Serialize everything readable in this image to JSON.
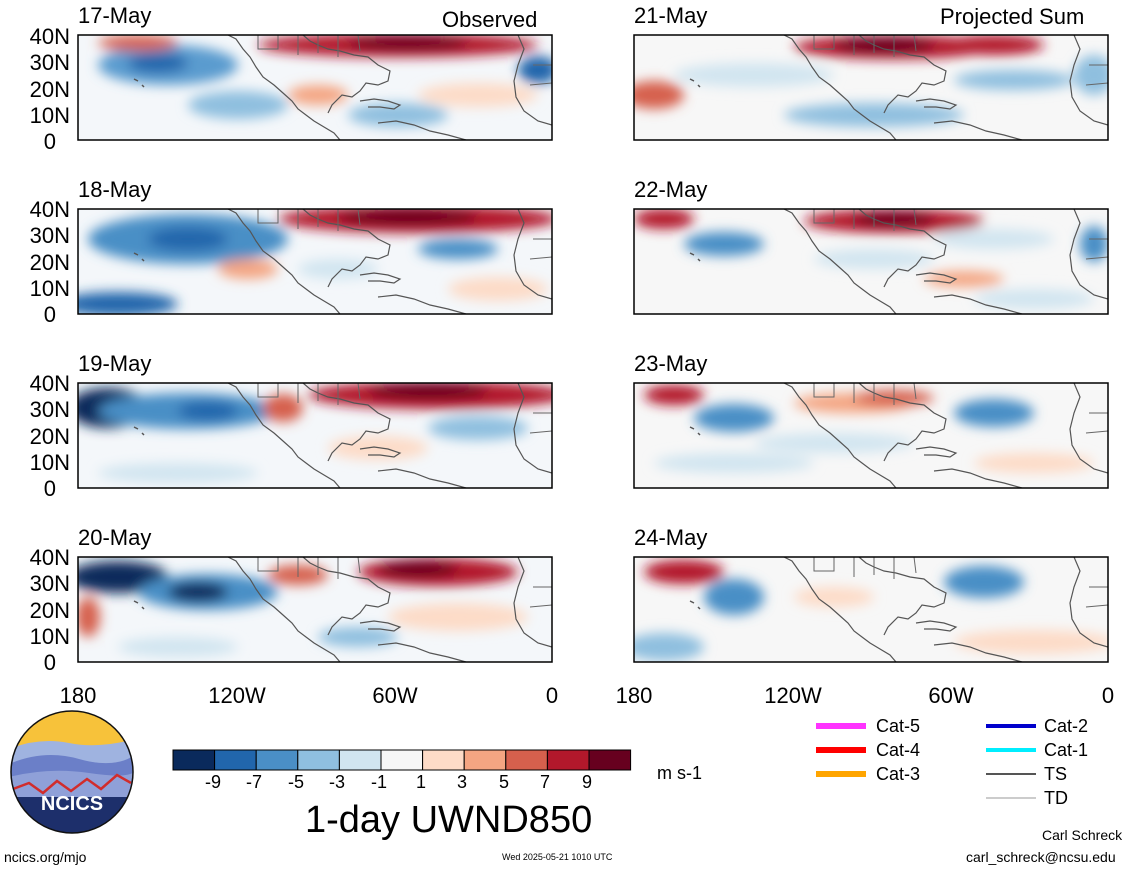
{
  "left_header": "Observed",
  "right_header": "Projected Sum",
  "left_panels": [
    {
      "date": "17-May"
    },
    {
      "date": "18-May"
    },
    {
      "date": "19-May"
    },
    {
      "date": "20-May"
    }
  ],
  "right_panels": [
    {
      "date": "21-May"
    },
    {
      "date": "22-May"
    },
    {
      "date": "23-May"
    },
    {
      "date": "24-May"
    }
  ],
  "y_ticks": [
    "40N",
    "30N",
    "20N",
    "10N",
    "0"
  ],
  "x_ticks": [
    "180",
    "120W",
    "60W",
    "0"
  ],
  "colorbar": {
    "ticks": [
      "-9",
      "-7",
      "-5",
      "-3",
      "-1",
      "1",
      "3",
      "5",
      "7",
      "9"
    ],
    "colors": [
      "#0a2a5c",
      "#2166ac",
      "#4a8fc6",
      "#8fbfdf",
      "#d1e5f0",
      "#f7f7f7",
      "#fddbc7",
      "#f4a582",
      "#d6604d",
      "#b2182b",
      "#67001f"
    ],
    "units": "m s-1"
  },
  "variable_title": "1-day UWND850",
  "legend": {
    "items_left": [
      {
        "label": "Cat-5",
        "color": "#ff33ff"
      },
      {
        "label": "Cat-4",
        "color": "#ff0000"
      },
      {
        "label": "Cat-3",
        "color": "#ffa500"
      }
    ],
    "items_right": [
      {
        "label": "Cat-2",
        "color": "#0000cc"
      },
      {
        "label": "Cat-1",
        "color": "#00eeff"
      },
      {
        "label": "TS",
        "color": "#555555"
      },
      {
        "label": "TD",
        "color": "#bbbbbb"
      }
    ]
  },
  "logo_text": "NCICS",
  "footer": {
    "url": "ncics.org/mjo",
    "timestamp": "Wed 2025-05-21 1010 UTC",
    "author": "Carl Schreck",
    "email": "carl_schreck@ncsu.edu"
  }
}
